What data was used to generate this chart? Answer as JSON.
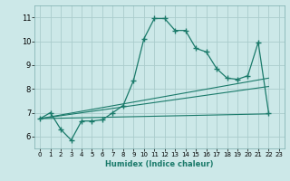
{
  "xlabel": "Humidex (Indice chaleur)",
  "xlim": [
    -0.5,
    23.5
  ],
  "ylim": [
    5.5,
    11.5
  ],
  "yticks": [
    6,
    7,
    8,
    9,
    10,
    11
  ],
  "xticks": [
    0,
    1,
    2,
    3,
    4,
    5,
    6,
    7,
    8,
    9,
    10,
    11,
    12,
    13,
    14,
    15,
    16,
    17,
    18,
    19,
    20,
    21,
    22,
    23
  ],
  "bg_color": "#cce8e8",
  "grid_color": "#aacccc",
  "line_color": "#1a7a6a",
  "line1_x": [
    0,
    1,
    2,
    3,
    4,
    5,
    6,
    7,
    8,
    9,
    10,
    11,
    12,
    13,
    14,
    15,
    16,
    17,
    18,
    19,
    20,
    21,
    22
  ],
  "line1_y": [
    6.75,
    7.0,
    6.3,
    5.85,
    6.65,
    6.65,
    6.7,
    7.0,
    7.3,
    8.35,
    10.1,
    10.95,
    10.95,
    10.45,
    10.45,
    9.7,
    9.55,
    8.85,
    8.45,
    8.4,
    8.55,
    9.95,
    7.0
  ],
  "line2_x": [
    0,
    22
  ],
  "line2_y": [
    6.75,
    8.45
  ],
  "line3_x": [
    0,
    22
  ],
  "line3_y": [
    6.75,
    8.1
  ],
  "line4_x": [
    0,
    22
  ],
  "line4_y": [
    6.75,
    6.95
  ]
}
